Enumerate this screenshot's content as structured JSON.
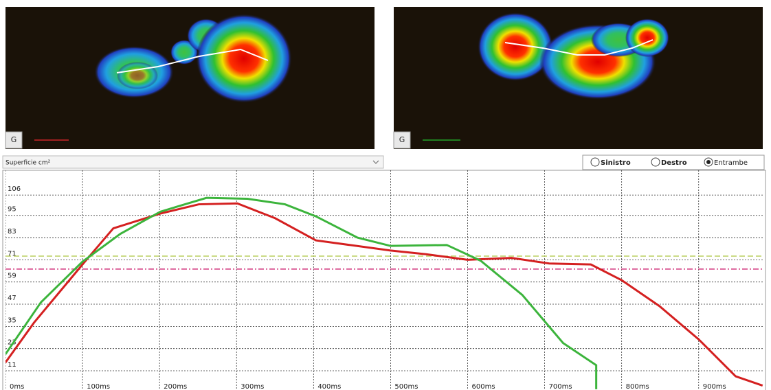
{
  "panels": [
    {
      "badge": "G"
    },
    {
      "badge": "G"
    }
  ],
  "dropdown": "Superficie cm²",
  "radios": [
    {
      "label": "Sinistro"
    },
    {
      "label": "Destro"
    },
    {
      "label": "Entrambe"
    }
  ],
  "chart_data": {
    "type": "line",
    "x": [],
    "series": [
      {
        "color": "#d42020",
        "x": [
          0,
          37,
          100,
          140,
          201,
          251,
          301,
          350,
          403,
          500,
          546,
          600,
          657,
          706,
          760,
          800,
          849,
          900,
          948,
          983
        ],
        "values": [
          15.5,
          37,
          68.5,
          88,
          96,
          101,
          101.5,
          93.5,
          81.5,
          76,
          74,
          71,
          72,
          69,
          68.5,
          60,
          46,
          28,
          8,
          3
        ]
      },
      {
        "color": "#3cb43c",
        "x": [
          0,
          46,
          100,
          149,
          201,
          261,
          314,
          363,
          403,
          457,
          500,
          573,
          617,
          671,
          724,
          767,
          767
        ],
        "values": [
          20,
          48,
          70,
          85,
          97,
          104.5,
          104,
          101,
          94.5,
          83,
          78.5,
          79,
          70.5,
          52,
          26,
          14,
          1
        ]
      }
    ],
    "reference_lines": [
      {
        "value": 73,
        "color": "#b8cf5e"
      },
      {
        "value": 66,
        "color": "#d0307a"
      }
    ],
    "xlim": [
      0,
      985
    ],
    "ylim": [
      0.6,
      119.4
    ],
    "xticks": [
      {
        "value": 0,
        "label": "0ms"
      },
      {
        "value": 100,
        "label": "100ms"
      },
      {
        "value": 200,
        "label": "200ms"
      },
      {
        "value": 300,
        "label": "300ms"
      },
      {
        "value": 400,
        "label": "400ms"
      },
      {
        "value": 500,
        "label": "500ms"
      },
      {
        "value": 600,
        "label": "600ms"
      },
      {
        "value": 700,
        "label": "700ms"
      },
      {
        "value": 800,
        "label": "800ms"
      },
      {
        "value": 900,
        "label": "900ms"
      }
    ],
    "yticks": [
      11,
      23,
      35,
      47,
      59,
      71,
      83,
      95,
      106
    ],
    "grid": true
  }
}
